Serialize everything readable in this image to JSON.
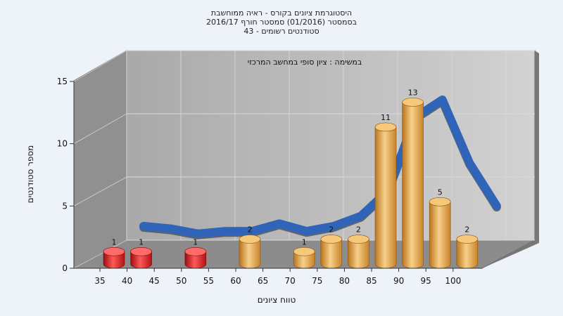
{
  "chart_data": {
    "type": "bar",
    "title": [
      "היסטוגרמת ציונים בקורס - ראיה ממוחשבת",
      "בסמסטר  (01/2016)  סמסטר חורף 2016/17",
      "סטודנטים רשומים - 43"
    ],
    "subtitle": "במשימה : ציון סופי במחשב המרכזי",
    "xlabel": "טווח ציונים",
    "ylabel": "מספר סטודנטים",
    "ylim": [
      0,
      15
    ],
    "yticks": [
      0,
      5,
      10,
      15
    ],
    "categories": [
      "35",
      "40",
      "45",
      "50",
      "55",
      "60",
      "65",
      "70",
      "75",
      "80",
      "85",
      "90",
      "95",
      "100"
    ],
    "values": [
      1,
      1,
      null,
      1,
      null,
      2,
      null,
      1,
      2,
      2,
      11,
      13,
      5,
      2
    ],
    "failing_categories": [
      "35",
      "40",
      "50"
    ],
    "grid": true,
    "colors": {
      "fail": "#e11b1b",
      "pass": "#e8a63f",
      "curve": "#2f64b8",
      "curve_shadow": "#555555",
      "wall": "#b8b8b8",
      "floor": "#8c8c8c"
    }
  }
}
